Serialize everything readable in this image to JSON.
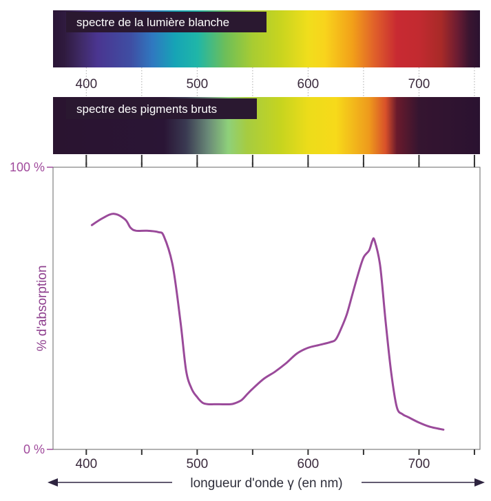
{
  "chart_data": [
    {
      "type": "spectrum-band",
      "label": "spectre de la lumière blanche",
      "x_range": [
        370,
        755
      ],
      "color_stops": [
        {
          "nm": 370,
          "color": "#2a1536"
        },
        {
          "nm": 380,
          "color": "#2f1a3e"
        },
        {
          "nm": 395,
          "color": "#3f2a66"
        },
        {
          "nm": 410,
          "color": "#4a3590"
        },
        {
          "nm": 440,
          "color": "#3f4ea3"
        },
        {
          "nm": 460,
          "color": "#2f79c0"
        },
        {
          "nm": 480,
          "color": "#16a4b6"
        },
        {
          "nm": 500,
          "color": "#1fb6a8"
        },
        {
          "nm": 525,
          "color": "#6cbe5a"
        },
        {
          "nm": 550,
          "color": "#a8cc32"
        },
        {
          "nm": 575,
          "color": "#c8d41f"
        },
        {
          "nm": 600,
          "color": "#f0de1c"
        },
        {
          "nm": 615,
          "color": "#f8d41c"
        },
        {
          "nm": 640,
          "color": "#f2a019"
        },
        {
          "nm": 660,
          "color": "#e0602a"
        },
        {
          "nm": 680,
          "color": "#c82a32"
        },
        {
          "nm": 700,
          "color": "#c22a30"
        },
        {
          "nm": 720,
          "color": "#a82a28"
        },
        {
          "nm": 735,
          "color": "#6a1c32"
        },
        {
          "nm": 745,
          "color": "#3b1530"
        },
        {
          "nm": 755,
          "color": "#2a1230"
        }
      ]
    },
    {
      "type": "spectrum-band",
      "label": "spectre des pigments bruts",
      "x_range": [
        370,
        755
      ],
      "color_stops": [
        {
          "nm": 370,
          "color": "#2a1430"
        },
        {
          "nm": 470,
          "color": "#2a1535"
        },
        {
          "nm": 490,
          "color": "#3a3a52"
        },
        {
          "nm": 510,
          "color": "#6a8a78"
        },
        {
          "nm": 528,
          "color": "#8ed07a"
        },
        {
          "nm": 545,
          "color": "#a6cc40"
        },
        {
          "nm": 575,
          "color": "#c6d41f"
        },
        {
          "nm": 600,
          "color": "#ecdc1a"
        },
        {
          "nm": 625,
          "color": "#f7da1a"
        },
        {
          "nm": 655,
          "color": "#ee9a1c"
        },
        {
          "nm": 670,
          "color": "#d8502a"
        },
        {
          "nm": 680,
          "color": "#6a1a2c"
        },
        {
          "nm": 700,
          "color": "#351530"
        },
        {
          "nm": 755,
          "color": "#2a1230"
        }
      ]
    },
    {
      "type": "line",
      "x_tick_labels": [
        "400",
        "500",
        "600",
        "700"
      ],
      "x_ticks_all": [
        400,
        450,
        500,
        550,
        600,
        650,
        700,
        750
      ],
      "xlim": [
        370,
        755
      ],
      "y_tick_labels": [
        "0 %",
        "100 %"
      ],
      "ylim": [
        0,
        100
      ],
      "ylabel": "% d'absorption",
      "xlabel": "longueur d'onde γ (en nm)",
      "grid": false,
      "series": [
        {
          "color": "#9a4a9a",
          "x": [
            405,
            415,
            425,
            435,
            440,
            445,
            455,
            465,
            470,
            478,
            485,
            490,
            495,
            500,
            505,
            510,
            515,
            520,
            530,
            535,
            540,
            545,
            550,
            560,
            570,
            580,
            590,
            600,
            610,
            620,
            625,
            630,
            635,
            640,
            645,
            650,
            655,
            658,
            660,
            665,
            670,
            675,
            680,
            685,
            690,
            700,
            710,
            722
          ],
          "y": [
            79.5,
            82,
            83.5,
            81.5,
            78.5,
            77.5,
            77.5,
            77,
            75.5,
            65,
            45,
            28,
            21.5,
            18.5,
            16.5,
            16,
            16,
            16,
            16,
            16.5,
            17.5,
            19.5,
            21.5,
            25,
            27.5,
            30.5,
            34,
            36,
            37,
            38,
            39,
            43,
            48,
            55,
            62,
            68,
            70.5,
            74,
            74,
            65,
            45,
            27,
            15,
            12.5,
            11.5,
            9.5,
            8,
            7
          ]
        }
      ]
    }
  ]
}
